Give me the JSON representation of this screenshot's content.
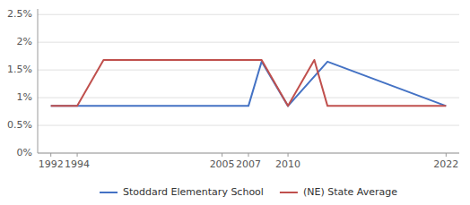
{
  "chart_data": {
    "type": "line",
    "series": [
      {
        "name": "Stoddard Elementary School",
        "color": "#4472c4",
        "x": [
          1992,
          2007,
          2008,
          2010,
          2013,
          2022
        ],
        "values": [
          0.0085,
          0.0085,
          0.0165,
          0.0085,
          0.0165,
          0.0085
        ]
      },
      {
        "name": "(NE) State Average",
        "color": "#c0504d",
        "x": [
          1992,
          1994,
          1996,
          2008,
          2010,
          2012,
          2013,
          2022
        ],
        "values": [
          0.0085,
          0.0085,
          0.0168,
          0.0168,
          0.0085,
          0.0168,
          0.0085,
          0.0085
        ]
      }
    ],
    "xlim": [
      1991.0,
      2023.0
    ],
    "xticks": [
      1992,
      1994,
      2005,
      2007,
      2010,
      2022
    ],
    "ylim": [
      0,
      0.026
    ],
    "yticks": [
      {
        "value": 0,
        "label": "0%"
      },
      {
        "value": 0.005,
        "label": "0.5%"
      },
      {
        "value": 0.01,
        "label": "1%"
      },
      {
        "value": 0.015,
        "label": "1.5%"
      },
      {
        "value": 0.02,
        "label": "2%"
      },
      {
        "value": 0.025,
        "label": "2.5%"
      }
    ],
    "grid": true,
    "legend": "bottom"
  }
}
